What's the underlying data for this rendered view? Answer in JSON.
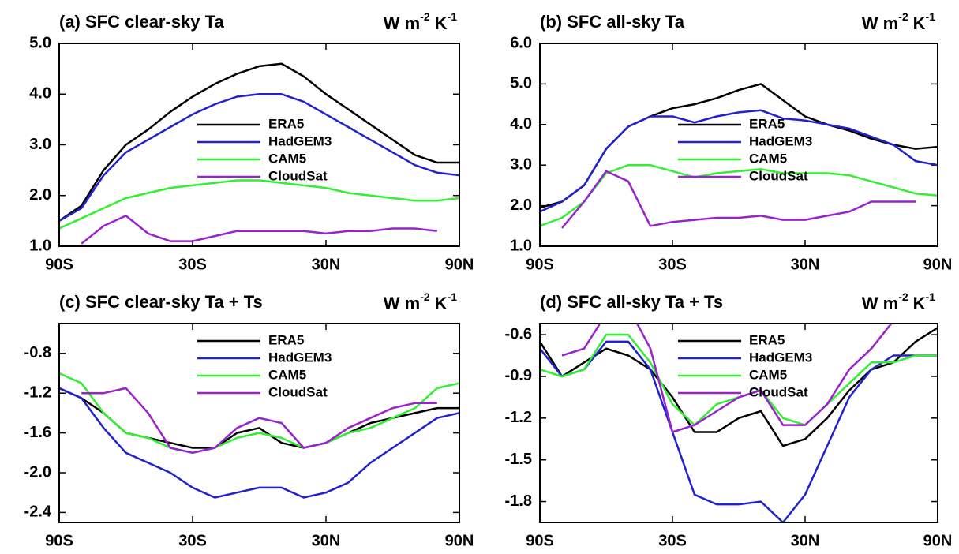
{
  "chart_data": [
    {
      "type": "line",
      "title": "(a) SFC clear-sky Ta",
      "units": [
        "W m",
        "-2",
        "K",
        "-1"
      ],
      "x": [
        -90,
        -80,
        -70,
        -60,
        -50,
        -40,
        -30,
        -20,
        -10,
        0,
        10,
        20,
        30,
        40,
        50,
        60,
        70,
        80,
        90
      ],
      "xlim": [
        -90,
        90
      ],
      "xticks": [
        {
          "value": -90,
          "label": "90S"
        },
        {
          "value": -30,
          "label": "30S"
        },
        {
          "value": 30,
          "label": "30N"
        },
        {
          "value": 90,
          "label": "90N"
        }
      ],
      "ylim": [
        1,
        5
      ],
      "yticks": [
        {
          "value": 1,
          "label": "1.0"
        },
        {
          "value": 2,
          "label": "2.0"
        },
        {
          "value": 3,
          "label": "3.0"
        },
        {
          "value": 4,
          "label": "4.0"
        },
        {
          "value": 5,
          "label": "5.0"
        }
      ],
      "legend": "center",
      "series": [
        {
          "name": "ERA5",
          "color": "#000000",
          "values": [
            1.5,
            1.8,
            2.5,
            3.0,
            3.3,
            3.65,
            3.95,
            4.2,
            4.4,
            4.55,
            4.6,
            4.35,
            4.0,
            3.7,
            3.4,
            3.1,
            2.8,
            2.65,
            2.65
          ]
        },
        {
          "name": "HadGEM3",
          "color": "#2222cc",
          "values": [
            1.5,
            1.75,
            2.4,
            2.85,
            3.1,
            3.35,
            3.6,
            3.8,
            3.95,
            4.0,
            4.0,
            3.85,
            3.6,
            3.35,
            3.1,
            2.85,
            2.6,
            2.45,
            2.4
          ]
        },
        {
          "name": "CAM5",
          "color": "#33ee33",
          "values": [
            1.35,
            1.55,
            1.75,
            1.95,
            2.05,
            2.15,
            2.2,
            2.25,
            2.3,
            2.3,
            2.25,
            2.2,
            2.15,
            2.05,
            2.0,
            1.95,
            1.9,
            1.9,
            1.95
          ]
        },
        {
          "name": "CloudSat",
          "color": "#9922cc",
          "values": [
            null,
            1.05,
            1.4,
            1.6,
            1.25,
            1.1,
            1.1,
            1.2,
            1.3,
            1.3,
            1.3,
            1.3,
            1.25,
            1.3,
            1.3,
            1.35,
            1.35,
            1.3,
            null
          ]
        }
      ]
    },
    {
      "type": "line",
      "title": "(b) SFC all-sky Ta",
      "units": [
        "W m",
        "-2",
        "K",
        "-1"
      ],
      "x": [
        -90,
        -80,
        -70,
        -60,
        -50,
        -40,
        -30,
        -20,
        -10,
        0,
        10,
        20,
        30,
        40,
        50,
        60,
        70,
        80,
        90
      ],
      "xlim": [
        -90,
        90
      ],
      "xticks": [
        {
          "value": -90,
          "label": "90S"
        },
        {
          "value": -30,
          "label": "30S"
        },
        {
          "value": 30,
          "label": "30N"
        },
        {
          "value": 90,
          "label": "90N"
        }
      ],
      "ylim": [
        1,
        6
      ],
      "yticks": [
        {
          "value": 1,
          "label": "1.0"
        },
        {
          "value": 2,
          "label": "2.0"
        },
        {
          "value": 3,
          "label": "3.0"
        },
        {
          "value": 4,
          "label": "4.0"
        },
        {
          "value": 5,
          "label": "5.0"
        },
        {
          "value": 6,
          "label": "6.0"
        }
      ],
      "legend": "center",
      "series": [
        {
          "name": "ERA5",
          "color": "#000000",
          "values": [
            1.95,
            2.1,
            2.5,
            3.4,
            3.95,
            4.2,
            4.4,
            4.5,
            4.65,
            4.85,
            5.0,
            4.6,
            4.2,
            4.0,
            3.85,
            3.65,
            3.5,
            3.4,
            3.45
          ]
        },
        {
          "name": "HadGEM3",
          "color": "#2222cc",
          "values": [
            1.85,
            2.1,
            2.5,
            3.4,
            3.95,
            4.2,
            4.2,
            4.05,
            4.2,
            4.3,
            4.35,
            4.15,
            4.1,
            4.0,
            3.9,
            3.7,
            3.5,
            3.1,
            3.0
          ]
        },
        {
          "name": "CAM5",
          "color": "#33ee33",
          "values": [
            1.5,
            1.7,
            2.1,
            2.8,
            3.0,
            3.0,
            2.85,
            2.7,
            2.8,
            2.85,
            2.9,
            2.8,
            2.8,
            2.8,
            2.75,
            2.6,
            2.45,
            2.3,
            2.25
          ]
        },
        {
          "name": "CloudSat",
          "color": "#9922cc",
          "values": [
            null,
            1.45,
            2.1,
            2.85,
            2.6,
            1.5,
            1.6,
            1.65,
            1.7,
            1.7,
            1.75,
            1.65,
            1.65,
            1.75,
            1.85,
            2.1,
            2.1,
            2.1,
            null
          ]
        }
      ]
    },
    {
      "type": "line",
      "title": "(c) SFC clear-sky Ta + Ts",
      "units": [
        "W m",
        "-2",
        "K",
        "-1"
      ],
      "x": [
        -90,
        -80,
        -70,
        -60,
        -50,
        -40,
        -30,
        -20,
        -10,
        0,
        10,
        20,
        30,
        40,
        50,
        60,
        70,
        80,
        90
      ],
      "xlim": [
        -90,
        90
      ],
      "xticks": [
        {
          "value": -90,
          "label": "90S"
        },
        {
          "value": -30,
          "label": "30S"
        },
        {
          "value": 30,
          "label": "30N"
        },
        {
          "value": 90,
          "label": "90N"
        }
      ],
      "ylim": [
        -2.5,
        -0.5
      ],
      "yticks": [
        -2.4,
        {
          "value": -2,
          "label": "-2.0"
        },
        -1.6,
        -1.2,
        -0.8
      ],
      "legend": "upper center",
      "series": [
        {
          "name": "ERA5",
          "color": "#000000",
          "values": [
            -1.15,
            -1.25,
            -1.4,
            -1.6,
            -1.65,
            -1.7,
            -1.75,
            -1.75,
            -1.6,
            -1.55,
            -1.7,
            -1.75,
            -1.7,
            -1.6,
            -1.5,
            -1.45,
            -1.4,
            -1.35,
            -1.35
          ]
        },
        {
          "name": "HadGEM3",
          "color": "#2222cc",
          "values": [
            -1.15,
            -1.25,
            -1.55,
            -1.8,
            -1.9,
            -2.0,
            -2.15,
            -2.25,
            -2.2,
            -2.15,
            -2.15,
            -2.25,
            -2.2,
            -2.1,
            -1.9,
            -1.75,
            -1.6,
            -1.45,
            -1.4
          ]
        },
        {
          "name": "CAM5",
          "color": "#33ee33",
          "values": [
            -1.0,
            -1.1,
            -1.4,
            -1.6,
            -1.65,
            -1.75,
            -1.8,
            -1.75,
            -1.65,
            -1.6,
            -1.65,
            -1.75,
            -1.7,
            -1.6,
            -1.55,
            -1.45,
            -1.35,
            -1.15,
            -1.1
          ]
        },
        {
          "name": "CloudSat",
          "color": "#9922cc",
          "values": [
            null,
            -1.2,
            -1.2,
            -1.15,
            -1.4,
            -1.75,
            -1.8,
            -1.75,
            -1.55,
            -1.45,
            -1.5,
            -1.75,
            -1.7,
            -1.55,
            -1.45,
            -1.35,
            -1.3,
            -1.3,
            null
          ]
        }
      ]
    },
    {
      "type": "line",
      "title": "(d) SFC all-sky Ta + Ts",
      "units": [
        "W m",
        "-2",
        "K",
        "-1"
      ],
      "x": [
        -90,
        -80,
        -70,
        -60,
        -50,
        -40,
        -30,
        -20,
        -10,
        0,
        10,
        20,
        30,
        40,
        50,
        60,
        70,
        80,
        90
      ],
      "xlim": [
        -90,
        90
      ],
      "xticks": [
        {
          "value": -90,
          "label": "90S"
        },
        {
          "value": -30,
          "label": "30S"
        },
        {
          "value": 30,
          "label": "30N"
        },
        {
          "value": 90,
          "label": "90N"
        }
      ],
      "ylim": [
        -1.95,
        -0.52
      ],
      "yticks": [
        -1.8,
        -1.5,
        -1.2,
        -0.9,
        -0.6
      ],
      "legend": "upper center",
      "series": [
        {
          "name": "ERA5",
          "color": "#000000",
          "values": [
            -0.65,
            -0.9,
            -0.8,
            -0.7,
            -0.75,
            -0.85,
            -1.05,
            -1.3,
            -1.3,
            -1.2,
            -1.15,
            -1.4,
            -1.35,
            -1.2,
            -1.0,
            -0.85,
            -0.8,
            -0.65,
            -0.55
          ]
        },
        {
          "name": "HadGEM3",
          "color": "#2222cc",
          "values": [
            -0.7,
            -0.9,
            -0.85,
            -0.65,
            -0.65,
            -0.85,
            -1.3,
            -1.75,
            -1.82,
            -1.82,
            -1.8,
            -1.95,
            -1.75,
            -1.4,
            -1.05,
            -0.85,
            -0.75,
            -0.75,
            -0.75
          ]
        },
        {
          "name": "CAM5",
          "color": "#33ee33",
          "values": [
            -0.85,
            -0.9,
            -0.85,
            -0.6,
            -0.6,
            -0.8,
            -1.1,
            -1.25,
            -1.1,
            -1.05,
            -1.0,
            -1.2,
            -1.25,
            -1.1,
            -0.95,
            -0.8,
            -0.8,
            -0.75,
            -0.75
          ]
        },
        {
          "name": "CloudSat",
          "color": "#9922cc",
          "values": [
            null,
            -0.75,
            -0.7,
            -0.45,
            -0.4,
            -0.7,
            -1.3,
            -1.25,
            -1.15,
            -1.05,
            -1.0,
            -1.25,
            -1.25,
            -1.1,
            -0.85,
            -0.7,
            -0.5,
            -0.4,
            null
          ]
        }
      ]
    }
  ]
}
